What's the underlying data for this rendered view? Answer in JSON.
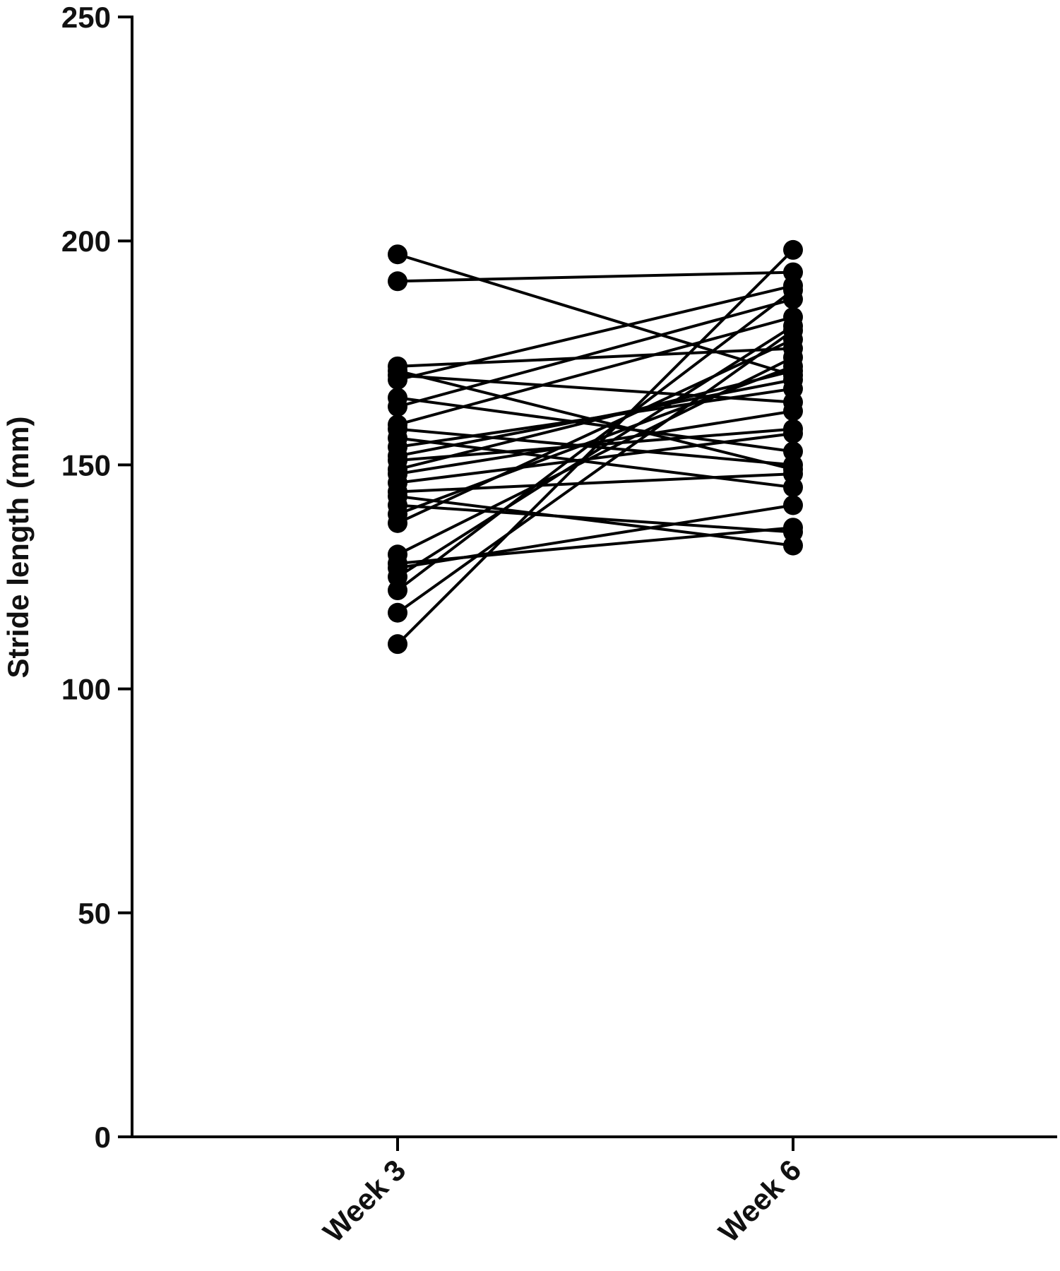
{
  "chart_data": {
    "type": "line",
    "title": "",
    "xlabel": "",
    "ylabel": "Stride length (mm)",
    "ylim": [
      0,
      250
    ],
    "yticks": [
      "0",
      "50",
      "100",
      "150",
      "200",
      "250"
    ],
    "categories": [
      "Week 3",
      "Week 6"
    ],
    "grid": false,
    "legend": "none",
    "colors": {
      "line": "#000000",
      "marker": "#000000"
    },
    "series": [
      {
        "values": [
          197,
          170
        ]
      },
      {
        "values": [
          191,
          193
        ]
      },
      {
        "values": [
          172,
          176
        ]
      },
      {
        "values": [
          171,
          149
        ]
      },
      {
        "values": [
          170,
          164
        ]
      },
      {
        "values": [
          169,
          190
        ]
      },
      {
        "values": [
          165,
          153
        ]
      },
      {
        "values": [
          163,
          187
        ]
      },
      {
        "values": [
          159,
          183
        ]
      },
      {
        "values": [
          158,
          150
        ]
      },
      {
        "values": [
          156,
          145
        ]
      },
      {
        "values": [
          154,
          167
        ]
      },
      {
        "values": [
          152,
          169
        ]
      },
      {
        "values": [
          151,
          158
        ]
      },
      {
        "values": [
          149,
          171
        ]
      },
      {
        "values": [
          148,
          162
        ]
      },
      {
        "values": [
          146,
          157
        ]
      },
      {
        "values": [
          144,
          148
        ]
      },
      {
        "values": [
          143,
          132
        ]
      },
      {
        "values": [
          141,
          135
        ]
      },
      {
        "values": [
          139,
          172
        ]
      },
      {
        "values": [
          137,
          178
        ]
      },
      {
        "values": [
          130,
          174
        ]
      },
      {
        "values": [
          128,
          136
        ]
      },
      {
        "values": [
          127,
          141
        ]
      },
      {
        "values": [
          125,
          181
        ]
      },
      {
        "values": [
          122,
          189
        ]
      },
      {
        "values": [
          117,
          180
        ]
      },
      {
        "values": [
          110,
          198
        ]
      }
    ]
  }
}
